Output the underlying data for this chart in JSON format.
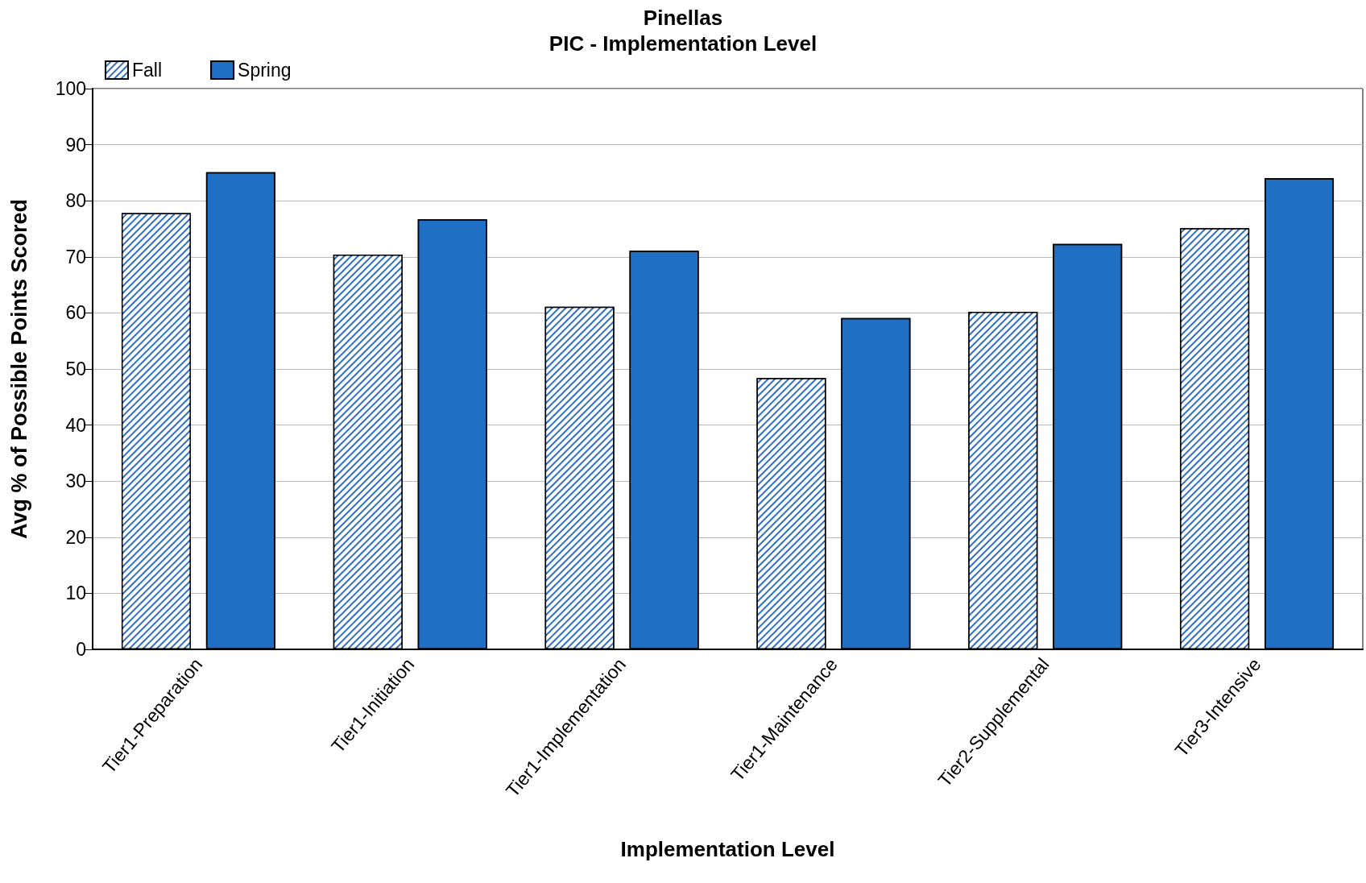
{
  "chart_data": {
    "type": "bar",
    "title": "Pinellas",
    "subtitle": "PIC - Implementation Level",
    "xlabel": "Implementation Level",
    "ylabel": "Avg % of Possible Points Scored",
    "categories": [
      "Tier1-Preparation",
      "Tier1-Initiation",
      "Tier1-Implementation",
      "Tier1-Maintenance",
      "Tier2-Supplemental",
      "Tier3-Intensive"
    ],
    "series": [
      {
        "name": "Fall",
        "color": "#2f6fc8",
        "values": [
          77.8,
          70.4,
          61.1,
          48.4,
          60.2,
          75.1
        ]
      },
      {
        "name": "Spring",
        "color": "#1f6fc4",
        "values": [
          85.1,
          76.7,
          71.1,
          59.1,
          72.3,
          84.0
        ]
      }
    ],
    "ylim": [
      0,
      100
    ],
    "yticks": [
      0,
      10,
      20,
      30,
      40,
      50,
      60,
      70,
      80,
      90,
      100
    ],
    "grid": true,
    "legend": "top left"
  }
}
